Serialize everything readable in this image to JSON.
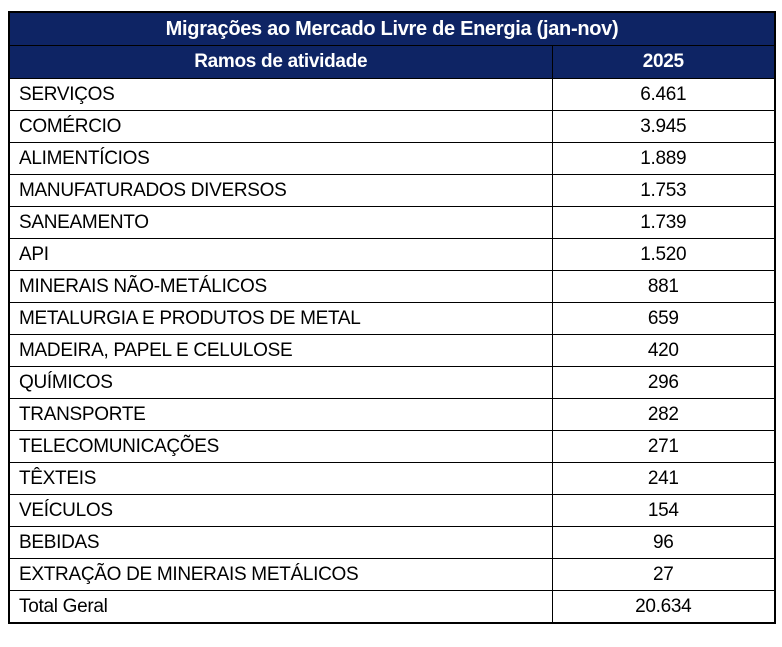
{
  "colors": {
    "header_bg": "#0e2464",
    "header_text": "#ffffff",
    "border": "#000000",
    "body_bg": "#ffffff",
    "body_text": "#000000"
  },
  "table": {
    "title": "Migrações ao Mercado Livre de Energia (jan-nov)",
    "columns": [
      "Ramos de atividade",
      "2025"
    ],
    "rows": [
      {
        "label": "SERVIÇOS",
        "value": "6.461"
      },
      {
        "label": "COMÉRCIO",
        "value": "3.945"
      },
      {
        "label": "ALIMENTÍCIOS",
        "value": "1.889"
      },
      {
        "label": "MANUFATURADOS DIVERSOS",
        "value": "1.753"
      },
      {
        "label": "SANEAMENTO",
        "value": "1.739"
      },
      {
        "label": "API",
        "value": "1.520"
      },
      {
        "label": "MINERAIS NÃO-METÁLICOS",
        "value": "881"
      },
      {
        "label": "METALURGIA E PRODUTOS DE METAL",
        "value": "659"
      },
      {
        "label": "MADEIRA, PAPEL E CELULOSE",
        "value": "420"
      },
      {
        "label": "QUÍMICOS",
        "value": "296"
      },
      {
        "label": "TRANSPORTE",
        "value": "282"
      },
      {
        "label": "TELECOMUNICAÇÕES",
        "value": "271"
      },
      {
        "label": "TÊXTEIS",
        "value": "241"
      },
      {
        "label": "VEÍCULOS",
        "value": "154"
      },
      {
        "label": "BEBIDAS",
        "value": "96"
      },
      {
        "label": "EXTRAÇÃO DE MINERAIS METÁLICOS",
        "value": "27"
      }
    ],
    "total": {
      "label": "Total Geral",
      "value": "20.634"
    }
  },
  "chart_data": {
    "type": "table",
    "title": "Migrações ao Mercado Livre de Energia (jan-nov)",
    "columns": [
      "Ramos de atividade",
      "2025"
    ],
    "categories": [
      "SERVIÇOS",
      "COMÉRCIO",
      "ALIMENTÍCIOS",
      "MANUFATURADOS DIVERSOS",
      "SANEAMENTO",
      "API",
      "MINERAIS NÃO-METÁLICOS",
      "METALURGIA E PRODUTOS DE METAL",
      "MADEIRA, PAPEL E CELULOSE",
      "QUÍMICOS",
      "TRANSPORTE",
      "TELECOMUNICAÇÕES",
      "TÊXTEIS",
      "VEÍCULOS",
      "BEBIDAS",
      "EXTRAÇÃO DE MINERAIS METÁLICOS"
    ],
    "values": [
      6461,
      3945,
      1889,
      1753,
      1739,
      1520,
      881,
      659,
      420,
      296,
      282,
      271,
      241,
      154,
      96,
      27
    ],
    "total_label": "Total Geral",
    "total": 20634
  }
}
